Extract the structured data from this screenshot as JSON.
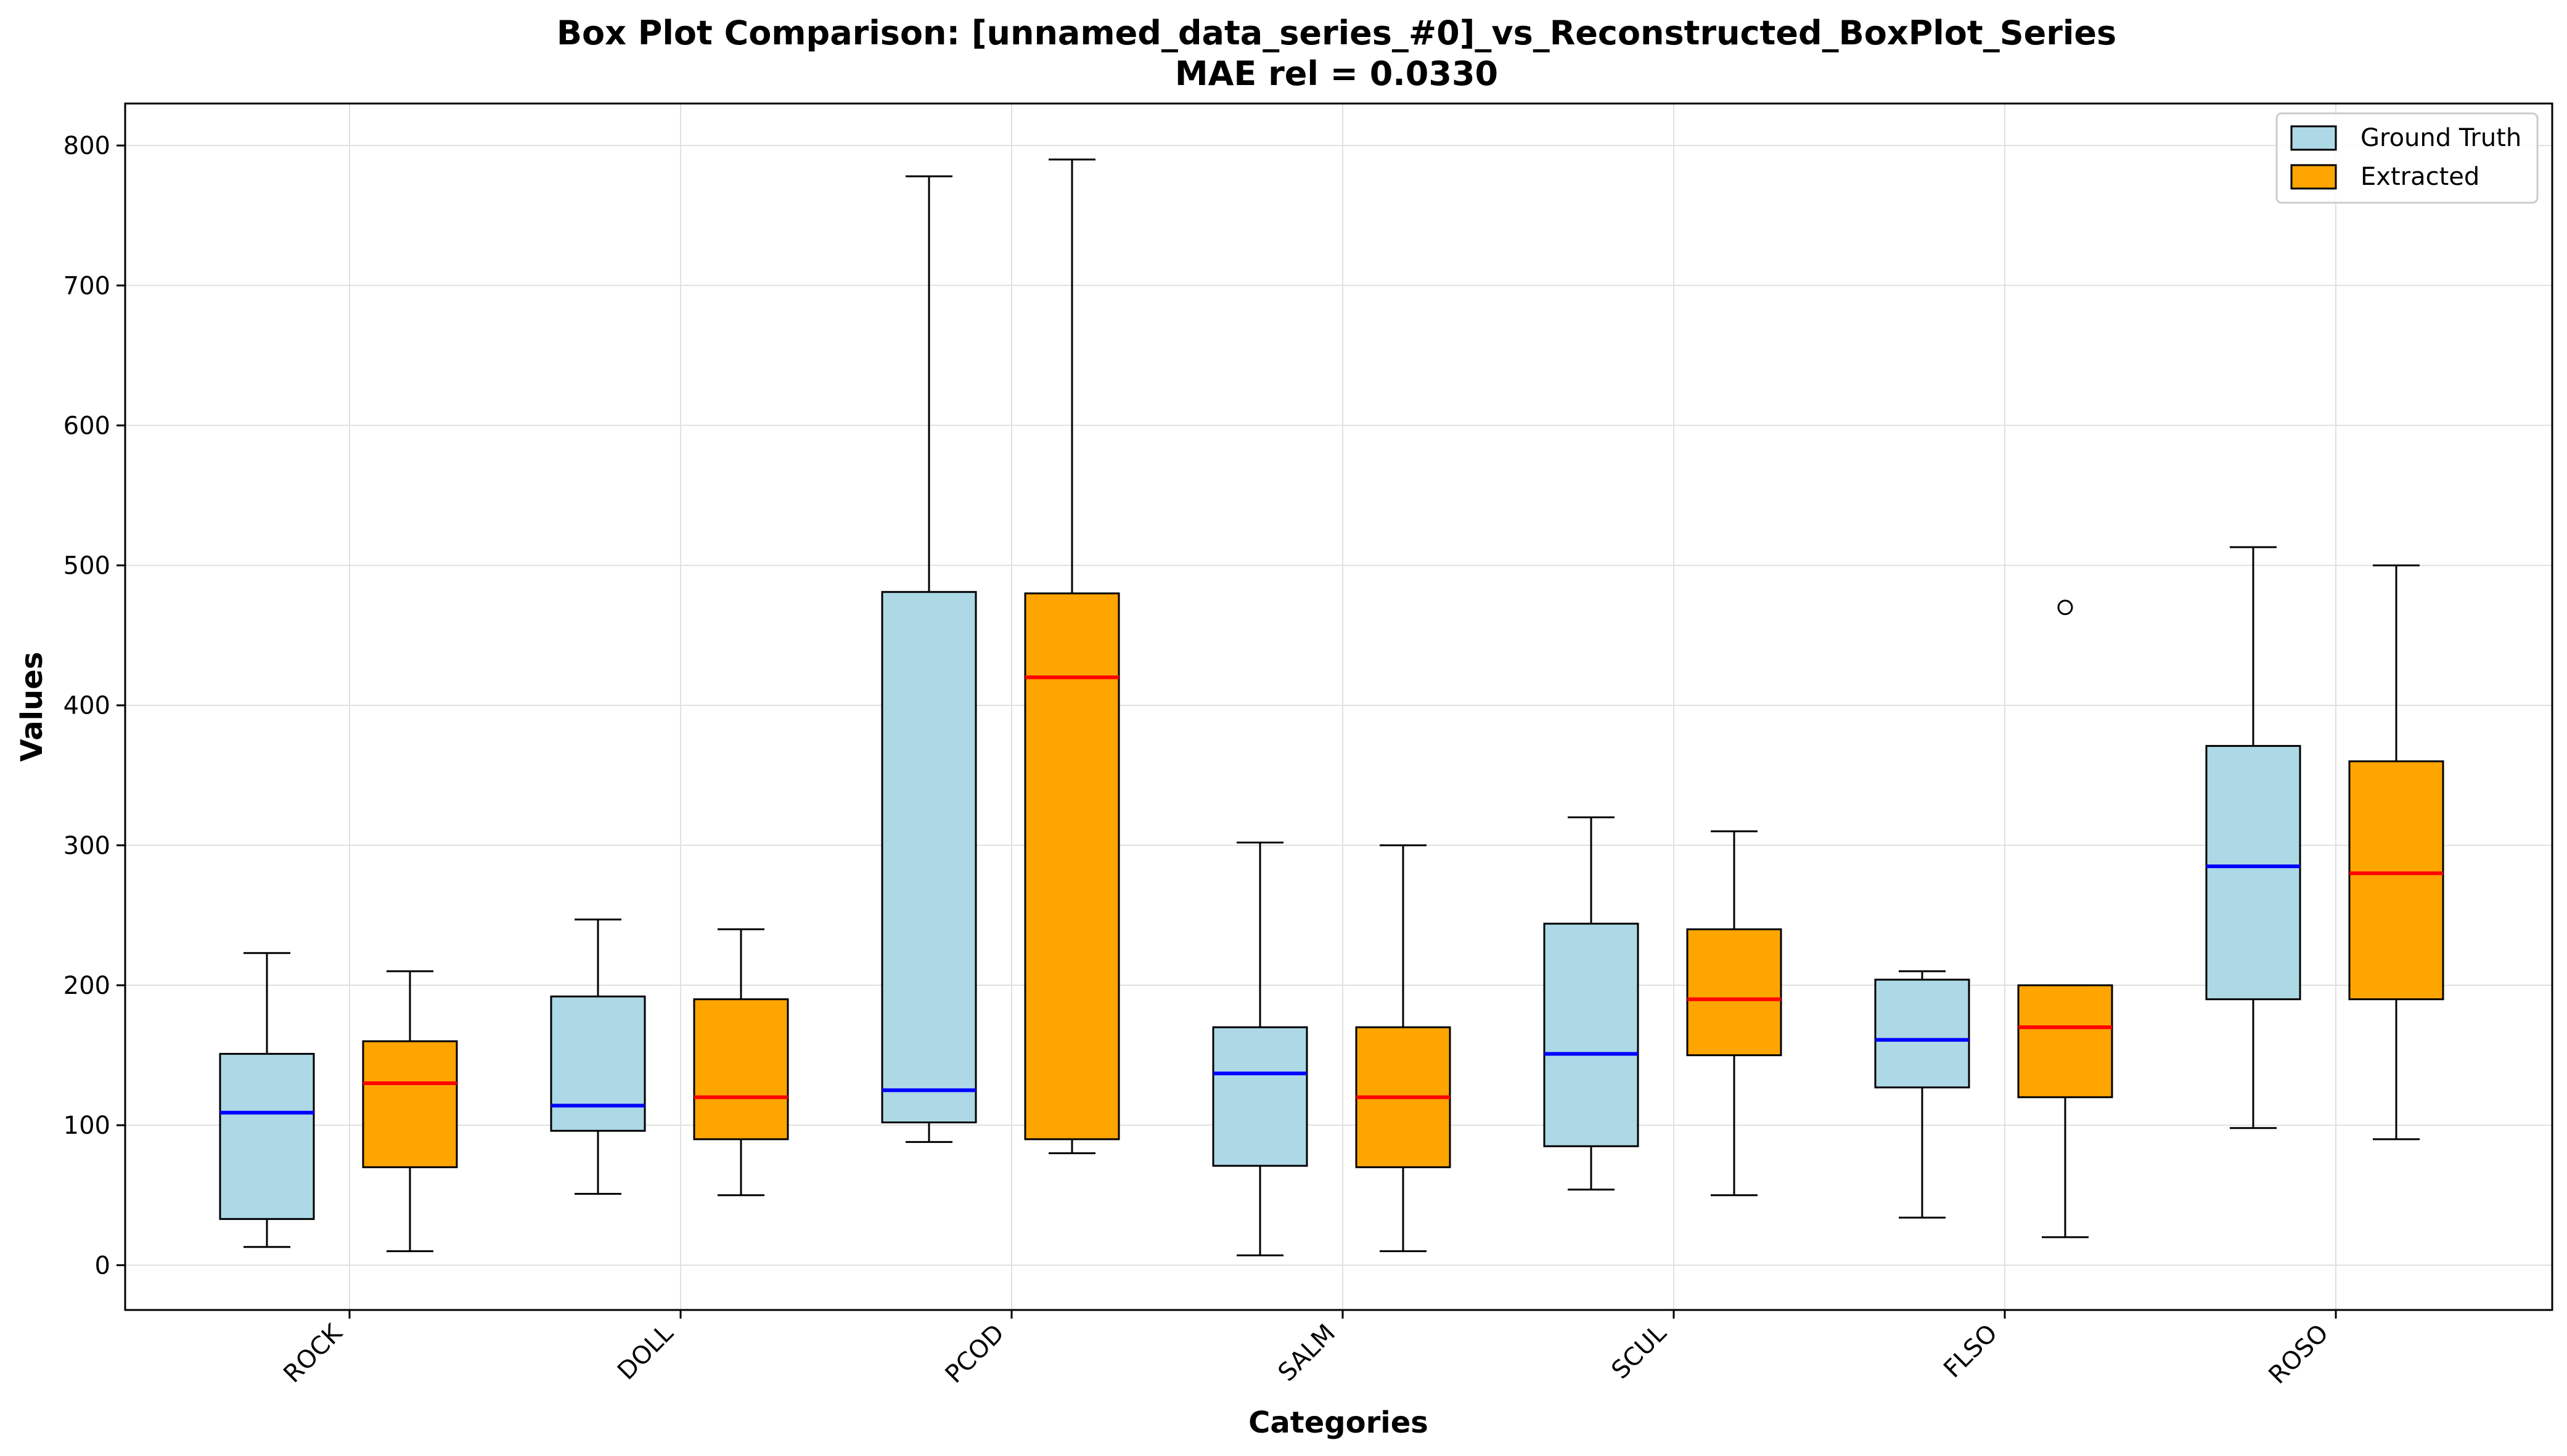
{
  "chart_data": {
    "type": "box",
    "title": "Box Plot Comparison: [unnamed_data_series_#0]_vs_Reconstructed_BoxPlot_Series",
    "subtitle": "MAE rel = 0.0330",
    "xlabel": "Categories",
    "ylabel": "Values",
    "ylim": [
      -32,
      830
    ],
    "yticks": [
      0,
      100,
      200,
      300,
      400,
      500,
      600,
      700,
      800
    ],
    "grid": true,
    "legend_position": "top-right",
    "categories": [
      "ROCK",
      "DOLL",
      "PCOD",
      "SALM",
      "SCUL",
      "FLSO",
      "ROSO"
    ],
    "series": [
      {
        "name": "Ground Truth",
        "fill": "#add8e6",
        "median_color": "#0000ff",
        "boxes": [
          {
            "whisker_low": 13,
            "q1": 33,
            "median": 109,
            "q3": 151,
            "whisker_high": 223,
            "outliers": []
          },
          {
            "whisker_low": 51,
            "q1": 96,
            "median": 114,
            "q3": 192,
            "whisker_high": 247,
            "outliers": []
          },
          {
            "whisker_low": 88,
            "q1": 102,
            "median": 125,
            "q3": 481,
            "whisker_high": 778,
            "outliers": []
          },
          {
            "whisker_low": 7,
            "q1": 71,
            "median": 137,
            "q3": 170,
            "whisker_high": 302,
            "outliers": []
          },
          {
            "whisker_low": 54,
            "q1": 85,
            "median": 151,
            "q3": 244,
            "whisker_high": 320,
            "outliers": []
          },
          {
            "whisker_low": 34,
            "q1": 127,
            "median": 161,
            "q3": 204,
            "whisker_high": 210,
            "outliers": []
          },
          {
            "whisker_low": 98,
            "q1": 190,
            "median": 285,
            "q3": 371,
            "whisker_high": 513,
            "outliers": []
          }
        ]
      },
      {
        "name": "Extracted",
        "fill": "#ffa500",
        "median_color": "#ff0000",
        "boxes": [
          {
            "whisker_low": 10,
            "q1": 70,
            "median": 130,
            "q3": 160,
            "whisker_high": 210,
            "outliers": []
          },
          {
            "whisker_low": 50,
            "q1": 90,
            "median": 120,
            "q3": 190,
            "whisker_high": 240,
            "outliers": []
          },
          {
            "whisker_low": 80,
            "q1": 90,
            "median": 420,
            "q3": 480,
            "whisker_high": 790,
            "outliers": []
          },
          {
            "whisker_low": 10,
            "q1": 70,
            "median": 120,
            "q3": 170,
            "whisker_high": 300,
            "outliers": []
          },
          {
            "whisker_low": 50,
            "q1": 150,
            "median": 190,
            "q3": 240,
            "whisker_high": 310,
            "outliers": []
          },
          {
            "whisker_low": 20,
            "q1": 120,
            "median": 170,
            "q3": 200,
            "whisker_high": 200,
            "outliers": [
              470
            ]
          },
          {
            "whisker_low": 90,
            "q1": 190,
            "median": 280,
            "q3": 360,
            "whisker_high": 500,
            "outliers": []
          }
        ]
      }
    ]
  }
}
